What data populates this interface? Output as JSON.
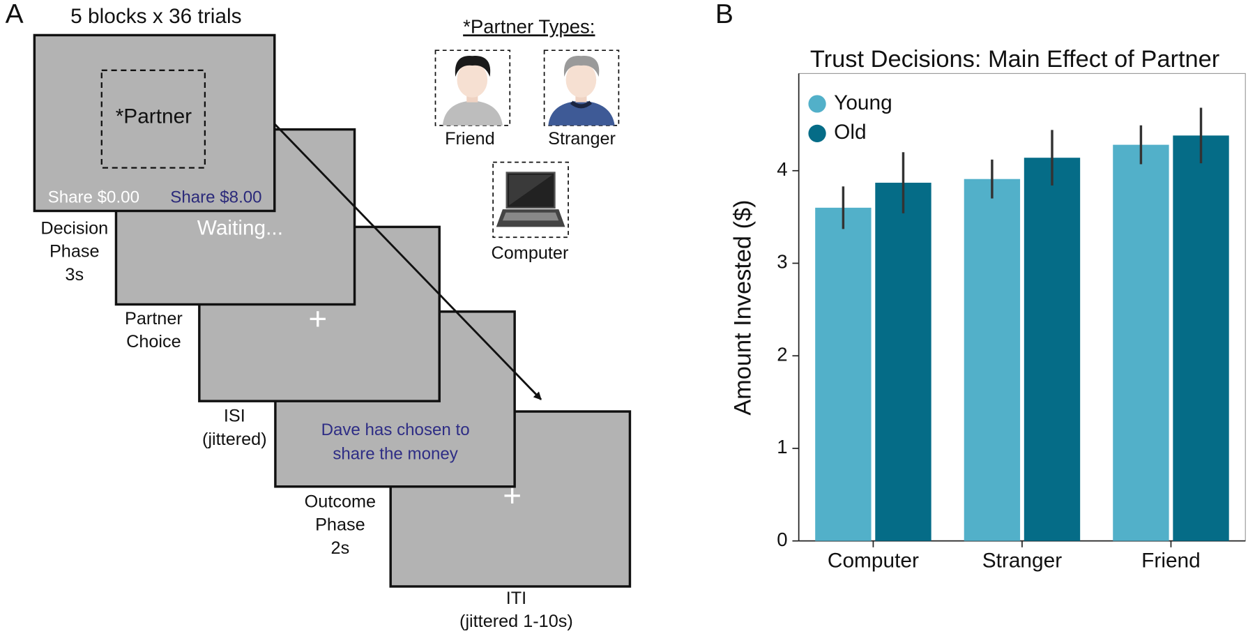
{
  "panel_a": {
    "label": "A",
    "heading": "5 blocks x 36 trials",
    "screens": {
      "partner": "*Partner",
      "share_low": "Share $0.00",
      "share_high": "Share $8.00",
      "waiting": "Waiting...",
      "fixation": "+",
      "outcome_lines": [
        "Dave has chosen to",
        "share the money"
      ],
      "fixation_2": "+"
    },
    "captions": [
      [
        "Decision",
        "Phase",
        "3s"
      ],
      [
        "Partner",
        "Choice"
      ],
      [
        "ISI",
        "(jittered)"
      ],
      [
        "Outcome",
        "Phase",
        "2s"
      ],
      [
        "ITI",
        "(jittered 1-10s)"
      ]
    ],
    "partner_types": {
      "title": "*Partner Types:",
      "friend": "Friend",
      "stranger": "Stranger",
      "computer": "Computer"
    }
  },
  "chart_data": {
    "type": "bar",
    "panel_label": "B",
    "title": "Trust Decisions: Main Effect of Partner",
    "y_label": "Amount Invested ($)",
    "categories": [
      "Computer",
      "Stranger",
      "Friend"
    ],
    "series": [
      {
        "name": "Young",
        "color": "#52b0c9",
        "values": [
          3.6,
          3.91,
          4.28
        ],
        "errors": [
          0.23,
          0.21,
          0.21
        ]
      },
      {
        "name": "Old",
        "color": "#056c87",
        "values": [
          3.87,
          4.14,
          4.38
        ],
        "errors": [
          0.33,
          0.3,
          0.3
        ]
      }
    ],
    "ylim": [
      0,
      5.05
    ],
    "yticks": [
      0,
      1,
      2,
      3,
      4
    ],
    "legend": "upper-left"
  }
}
